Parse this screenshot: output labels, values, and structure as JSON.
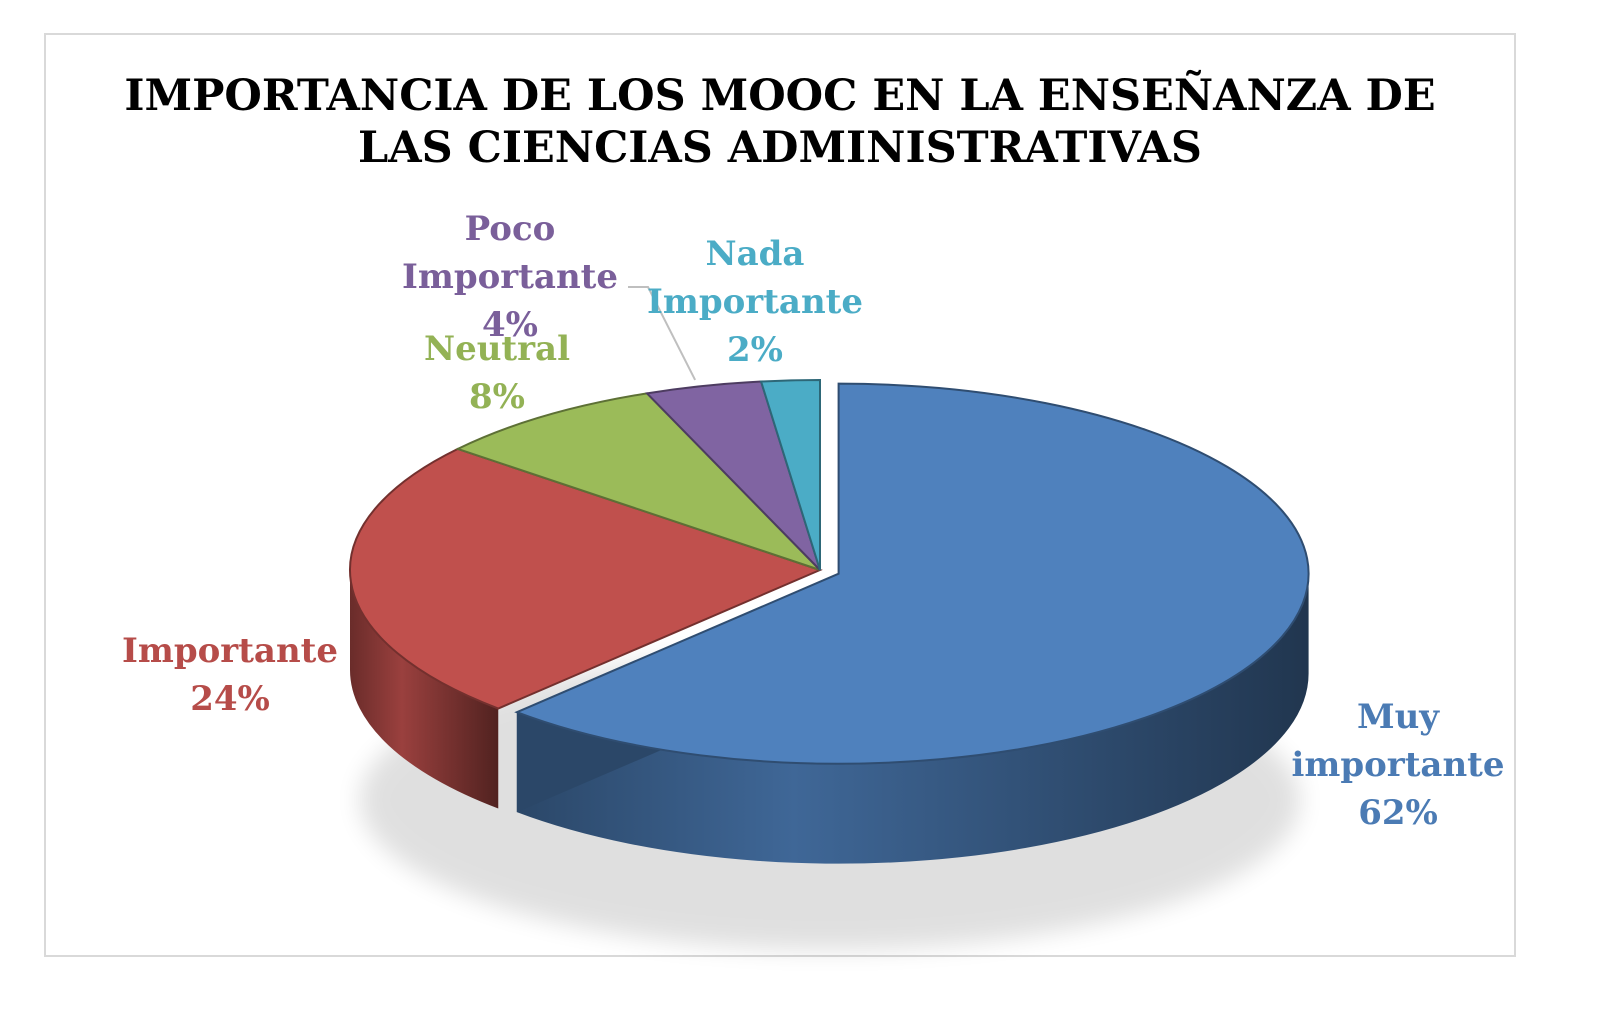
{
  "chart_data": {
    "type": "pie",
    "three_d": true,
    "title_lines": [
      "IMPORTANCIA DE LOS MOOC EN LA ENSEÑANZA DE",
      "LAS CIENCIAS ADMINISTRATIVAS"
    ],
    "slices": [
      {
        "name": "Muy importante",
        "label_lines": [
          "Muy",
          "importante"
        ],
        "value": 62,
        "pct_text": "62%",
        "color": "#4f81bd",
        "exploded": true
      },
      {
        "name": "Importante",
        "label_lines": [
          "Importante"
        ],
        "value": 24,
        "pct_text": "24%",
        "color": "#c0504d",
        "exploded": false
      },
      {
        "name": "Neutral",
        "label_lines": [
          "Neutral"
        ],
        "value": 8,
        "pct_text": "8%",
        "color": "#9bbb59",
        "exploded": false
      },
      {
        "name": "Poco Importante",
        "label_lines": [
          "Poco",
          "Importante"
        ],
        "value": 4,
        "pct_text": "4%",
        "color": "#8064a2",
        "exploded": false
      },
      {
        "name": "Nada Importante",
        "label_lines": [
          "Nada",
          "Importante"
        ],
        "value": 2,
        "pct_text": "2%",
        "color": "#4bacc6",
        "exploded": false
      }
    ],
    "legend": "none",
    "data_labels": "category-and-percent"
  }
}
